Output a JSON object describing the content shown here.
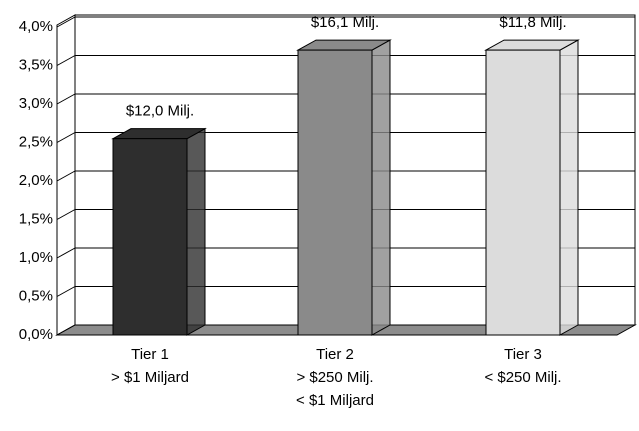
{
  "chart_data": {
    "type": "bar3d",
    "categories": [
      [
        "Tier 1",
        "> $1 Miljard"
      ],
      [
        "Tier 2",
        "> $250 Milj.",
        "< $1 Miljard"
      ],
      [
        "Tier 3",
        "< $250 Milj."
      ]
    ],
    "values": [
      2.55,
      3.7,
      3.7
    ],
    "bar_labels": [
      "$12,0 Milj.",
      "$16,1 Milj.",
      "$11,8 Milj."
    ],
    "colors": [
      "#2e2e2e",
      "#8a8a8a",
      "#dcdcdc"
    ],
    "ylim": [
      0,
      4
    ],
    "yticks": [
      {
        "value": 0,
        "label": "0,0%"
      },
      {
        "value": 0.5,
        "label": "0,5%"
      },
      {
        "value": 1,
        "label": "1,0%"
      },
      {
        "value": 1.5,
        "label": "1,5%"
      },
      {
        "value": 2,
        "label": "2,0%"
      },
      {
        "value": 2.5,
        "label": "2,5%"
      },
      {
        "value": 3,
        "label": "3,0%"
      },
      {
        "value": 3.5,
        "label": "3,5%"
      },
      {
        "value": 4,
        "label": "4,0%"
      }
    ],
    "grid": true
  }
}
